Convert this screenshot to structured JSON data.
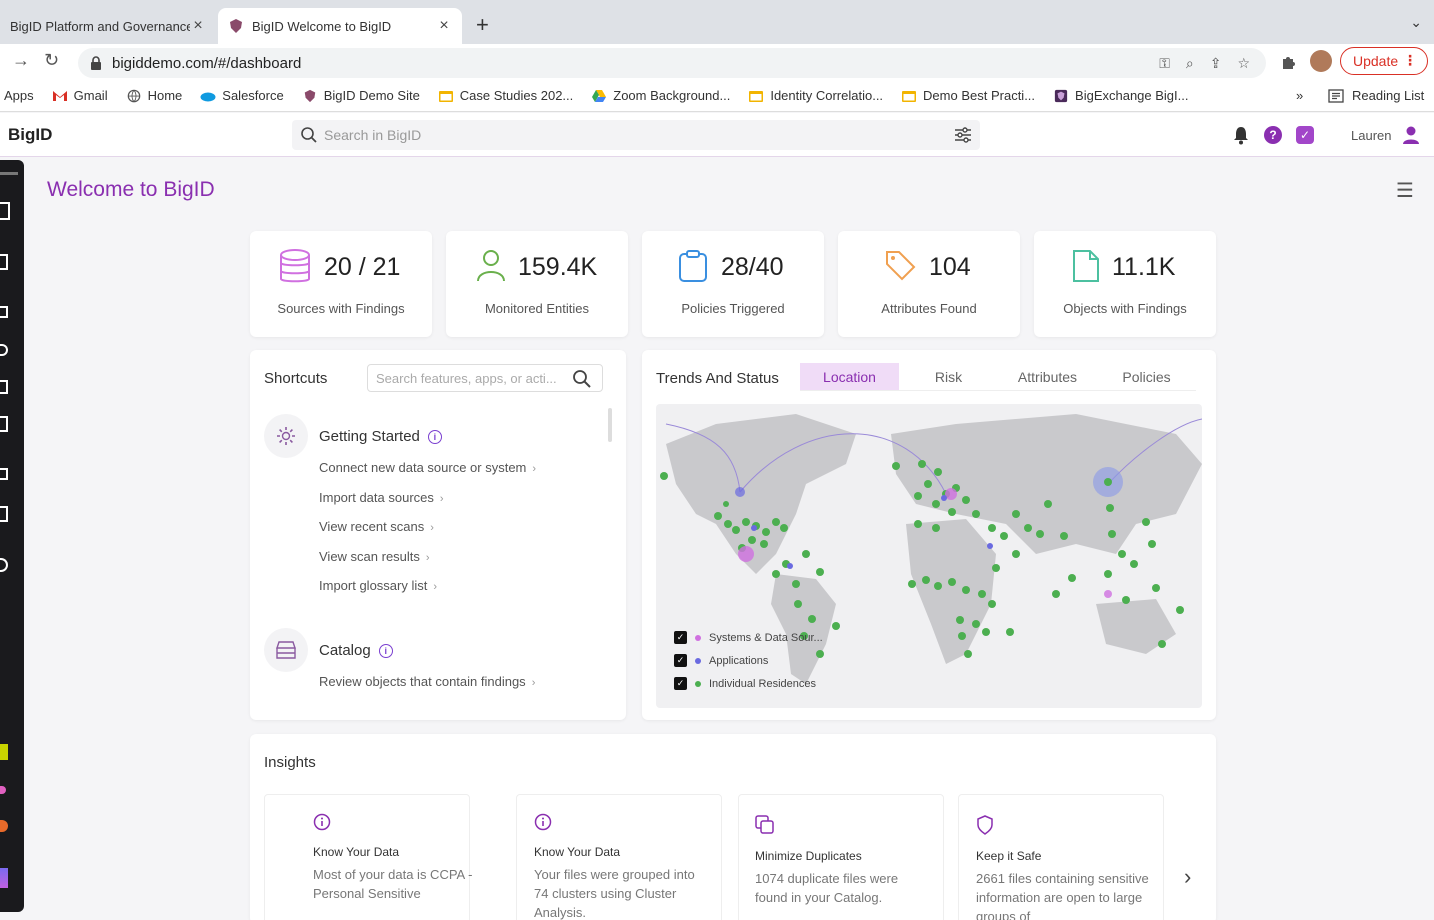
{
  "browser": {
    "tabs": [
      {
        "title": "BigID Platform and Governance",
        "active": false
      },
      {
        "title": "BigID Welcome to BigID",
        "active": true
      }
    ],
    "url": "bigiddemo.com/#/dashboard",
    "update_label": "Update",
    "bookmarks": [
      {
        "label": "Apps",
        "icon": "apps-grid-icon"
      },
      {
        "label": "Gmail",
        "icon": "gmail-icon"
      },
      {
        "label": "Home",
        "icon": "home-globe-icon"
      },
      {
        "label": "Salesforce",
        "icon": "salesforce-cloud-icon"
      },
      {
        "label": "BigID Demo Site",
        "icon": "bigid-shield-icon"
      },
      {
        "label": "Case Studies 202...",
        "icon": "folder-icon"
      },
      {
        "label": "Zoom Background...",
        "icon": "drive-icon"
      },
      {
        "label": "Identity Correlatio...",
        "icon": "folder-icon"
      },
      {
        "label": "Demo Best Practi...",
        "icon": "folder-icon"
      },
      {
        "label": "BigExchange BigI...",
        "icon": "bigexchange-icon"
      }
    ],
    "bookmarks_more": "»",
    "reading_list": "Reading List"
  },
  "app": {
    "logo": "BigID",
    "search_placeholder": "Search in BigID",
    "user_name": "Lauren",
    "help_glyph": "?",
    "task_glyph": "✓",
    "accent": "#8a2fb0"
  },
  "page": {
    "title": "Welcome to BigID"
  },
  "stats": [
    {
      "value": "20 / 21",
      "label": "Sources with Findings",
      "icon": "database-icon"
    },
    {
      "value": "159.4K",
      "label": "Monitored Entities",
      "icon": "person-icon"
    },
    {
      "value": "28/40",
      "label": "Policies Triggered",
      "icon": "clipboard-icon"
    },
    {
      "value": "104",
      "label": "Attributes Found",
      "icon": "tag-icon"
    },
    {
      "value": "11.1K",
      "label": "Objects with Findings",
      "icon": "file-icon"
    }
  ],
  "shortcuts": {
    "title": "Shortcuts",
    "search_placeholder": "Search features, apps, or acti...",
    "groups": [
      {
        "title": "Getting Started",
        "icon": "gear-icon",
        "links": [
          "Connect new data source or system",
          "Import data sources",
          "View recent scans",
          "View scan results",
          "Import glossary list"
        ]
      },
      {
        "title": "Catalog",
        "icon": "catalog-icon",
        "links": [
          "Review objects that contain findings"
        ]
      }
    ]
  },
  "trends": {
    "title": "Trends And Status",
    "tabs": [
      "Location",
      "Risk",
      "Attributes",
      "Policies"
    ],
    "selected_tab": "Location",
    "legend": [
      {
        "label": "Systems & Data Sour...",
        "color": "#d070e0",
        "checked": true
      },
      {
        "label": "Applications",
        "color": "#6a6ae0",
        "checked": true
      },
      {
        "label": "Individual Residences",
        "color": "#4caf50",
        "checked": true
      }
    ]
  },
  "insights": {
    "title": "Insights",
    "cards": [
      {
        "icon": "info-icon",
        "title": "Know Your Data",
        "text": "Most of your data is CCPA - Personal Sensitive"
      },
      {
        "icon": "info-icon",
        "title": "Know Your Data",
        "text": "Your files were grouped into 74 clusters using Cluster Analysis."
      },
      {
        "icon": "duplicate-icon",
        "title": "Minimize Duplicates",
        "text": "1074 duplicate files were found in your Catalog."
      },
      {
        "icon": "shield-icon",
        "title": "Keep it Safe",
        "text": "2661 files containing sensitive information are open to large groups of"
      }
    ]
  }
}
